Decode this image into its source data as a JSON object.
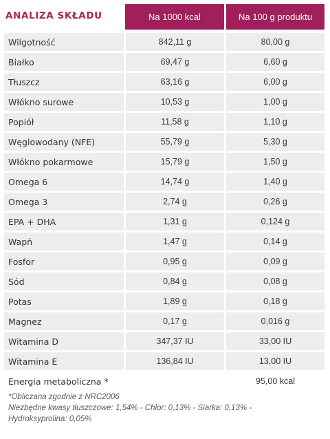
{
  "header": {
    "title": "ANALIZA SKŁADU",
    "col1": "Na 1000 kcal",
    "col2": "Na 100 g produktu"
  },
  "rows": [
    {
      "name": "Wilgotność",
      "per1000": "842,11 g",
      "per100": "80,00 g"
    },
    {
      "name": "Białko",
      "per1000": "69,47 g",
      "per100": "6,60 g"
    },
    {
      "name": "Tłuszcz",
      "per1000": "63,16 g",
      "per100": "6,00 g"
    },
    {
      "name": "Włókno surowe",
      "per1000": "10,53 g",
      "per100": "1,00 g"
    },
    {
      "name": "Popiół",
      "per1000": "11,58 g",
      "per100": "1,10 g"
    },
    {
      "name": "Węglowodany (NFE)",
      "per1000": "55,79 g",
      "per100": "5,30 g"
    },
    {
      "name": "Włókno pokarmowe",
      "per1000": "15,79 g",
      "per100": "1,50 g"
    },
    {
      "name": "Omega 6",
      "per1000": "14,74 g",
      "per100": "1,40 g"
    },
    {
      "name": "Omega 3",
      "per1000": "2,74 g",
      "per100": "0,26 g"
    },
    {
      "name": "EPA + DHA",
      "per1000": "1,31 g",
      "per100": "0,124 g"
    },
    {
      "name": "Wapń",
      "per1000": "1,47 g",
      "per100": "0,14 g"
    },
    {
      "name": "Fosfor",
      "per1000": "0,95 g",
      "per100": "0,09 g"
    },
    {
      "name": "Sód",
      "per1000": "0,84 g",
      "per100": "0,08 g"
    },
    {
      "name": "Potas",
      "per1000": "1,89 g",
      "per100": "0,18 g"
    },
    {
      "name": "Magnez",
      "per1000": "0,17 g",
      "per100": "0,016 g"
    },
    {
      "name": "Witamina D",
      "per1000": "347,37 IU",
      "per100": "33,00 IU"
    },
    {
      "name": "Witamina E",
      "per1000": "136,84 IU",
      "per100": "13,00 IU"
    },
    {
      "name": "Energia metaboliczna *",
      "per1000": "",
      "per100": "95,00 kcal"
    }
  ],
  "notes": {
    "line1": "*Obliczana zgodnie z NRC2006",
    "line2": "Niezbędne kwasy tłuszczowe: 1,54% - Chlor: 0,13% - Siarka: 0,13%  -",
    "line3": "Hydroksyprolina: 0,05%"
  },
  "colors": {
    "accent": "#a11f5a",
    "title": "#a8255f",
    "row_bg": "#ededed"
  }
}
